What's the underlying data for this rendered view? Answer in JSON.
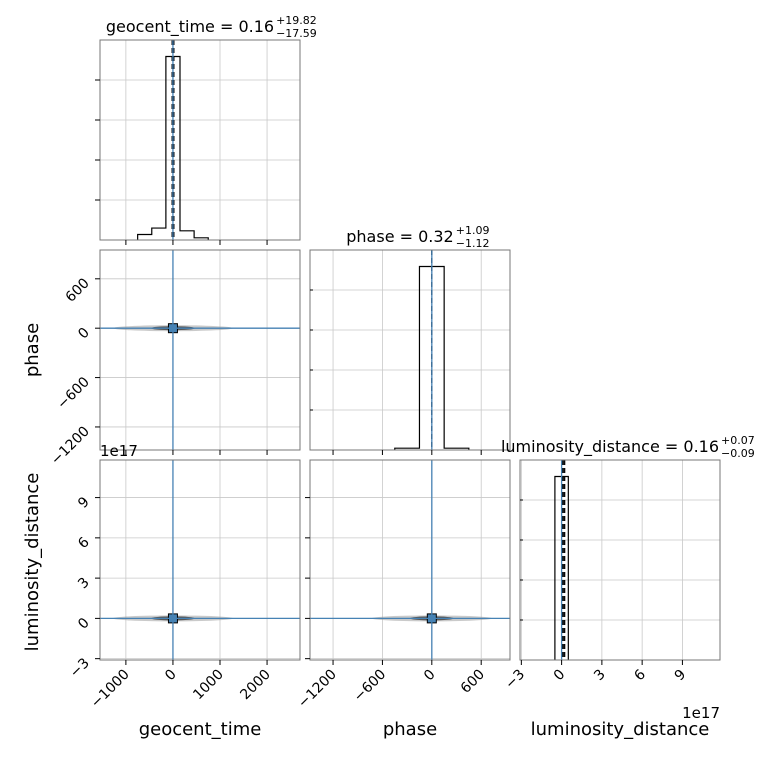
{
  "chart_data": {
    "type": "corner",
    "parameters": [
      "geocent_time",
      "phase",
      "luminosity_distance"
    ],
    "axis_labels": {
      "geocent_time": "geocent_time",
      "phase": "phase",
      "luminosity_distance": "luminosity_distance"
    },
    "ranges": {
      "geocent_time": [
        -1550,
        2700
      ],
      "phase": [
        -1480,
        950
      ],
      "luminosity_distance": [
        -3.1,
        11.8
      ]
    },
    "ticks": {
      "geocent_time": [
        -1000,
        0,
        1000,
        2000
      ],
      "phase": [
        -1200,
        -600,
        0,
        600
      ],
      "luminosity_distance": [
        -3,
        0,
        3,
        6,
        9
      ]
    },
    "tick_labels": {
      "geocent_time": [
        "−1000",
        "0",
        "1000",
        "2000"
      ],
      "phase": [
        "−1200",
        "−600",
        "0",
        "600"
      ],
      "luminosity_distance": [
        "−3",
        "0",
        "3",
        "6",
        "9"
      ]
    },
    "offset_text": "1e17",
    "truths": {
      "geocent_time": 0,
      "phase": 0,
      "luminosity_distance": 0
    },
    "titles": {
      "geocent_time": {
        "name": "geocent_time",
        "median": "0.16",
        "plus": "+19.82",
        "minus": "−17.59"
      },
      "phase": {
        "name": "phase",
        "median": "0.32",
        "plus": "+1.09",
        "minus": "−1.12"
      },
      "luminosity_distance": {
        "name": "luminosity_distance",
        "median": "0.16",
        "plus": "+0.07",
        "minus": "−0.09"
      }
    },
    "histograms": {
      "geocent_time": {
        "edges": [
          -750,
          -450,
          -150,
          150,
          450,
          750
        ],
        "counts": [
          0.03,
          0.065,
          1.0,
          0.05,
          0.012
        ]
      },
      "phase": {
        "edges": [
          -450,
          -150,
          150,
          450
        ],
        "counts": [
          0.01,
          1.0,
          0.01
        ]
      },
      "luminosity_distance": {
        "edges": [
          -0.5,
          0.5
        ],
        "counts": [
          1.0
        ]
      }
    },
    "quantile_lines": {
      "geocent_time": [
        -17.43,
        0.16,
        19.98
      ],
      "phase": [
        -0.8,
        0.32,
        1.41
      ],
      "luminosity_distance": [
        0.07,
        0.16,
        0.23
      ]
    },
    "grid": true,
    "truth_color": "#4682b4",
    "hist_color": "#000000"
  }
}
